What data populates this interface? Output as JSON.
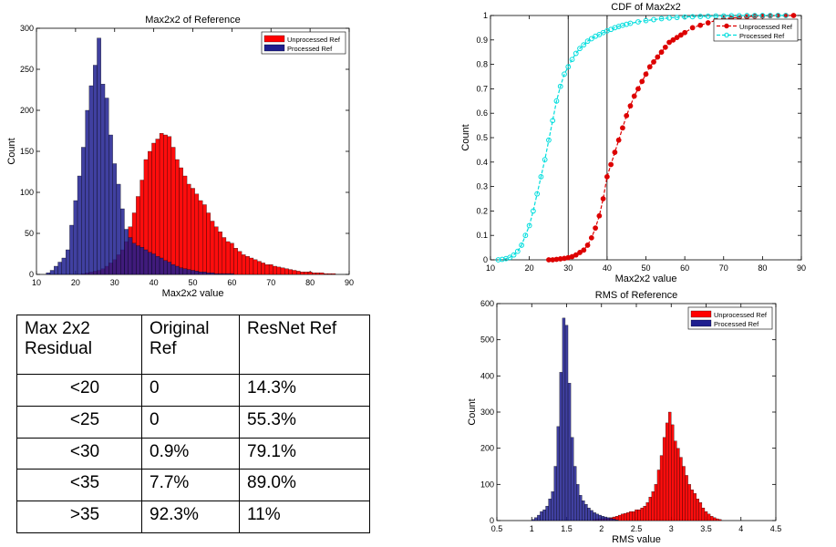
{
  "chart_data": [
    {
      "id": "hist-max",
      "type": "bar",
      "title": "Max2x2 of Reference",
      "xlabel": "Max2x2 value",
      "ylabel": "Count",
      "xlim": [
        10,
        90
      ],
      "ylim": [
        0,
        300
      ],
      "xticks": [
        "10",
        "20",
        "30",
        "40",
        "50",
        "60",
        "70",
        "80",
        "90"
      ],
      "yticks": [
        "0",
        "50",
        "100",
        "150",
        "200",
        "250",
        "300"
      ],
      "bin_width": 1,
      "legend": {
        "placement": "top-right"
      },
      "series": [
        {
          "name": "Unprocessed Ref",
          "color": "#ff0000",
          "x": [
            22,
            23,
            24,
            25,
            26,
            27,
            28,
            29,
            30,
            31,
            32,
            33,
            34,
            35,
            36,
            37,
            38,
            39,
            40,
            41,
            42,
            43,
            44,
            45,
            46,
            47,
            48,
            49,
            50,
            51,
            52,
            53,
            54,
            55,
            56,
            57,
            58,
            59,
            60,
            61,
            62,
            63,
            64,
            65,
            66,
            67,
            68,
            69,
            70,
            71,
            72,
            73,
            74,
            75,
            76,
            77,
            78,
            79,
            80,
            81,
            82,
            83,
            84,
            85,
            86
          ],
          "values": [
            1,
            2,
            3,
            4,
            5,
            7,
            10,
            14,
            18,
            24,
            30,
            40,
            58,
            75,
            95,
            115,
            140,
            150,
            160,
            165,
            172,
            170,
            168,
            155,
            140,
            130,
            120,
            110,
            105,
            98,
            90,
            85,
            75,
            65,
            58,
            52,
            45,
            40,
            38,
            32,
            28,
            24,
            22,
            20,
            18,
            16,
            14,
            12,
            12,
            10,
            9,
            8,
            7,
            6,
            5,
            4,
            3,
            3,
            3,
            2,
            2,
            2,
            1,
            1,
            1
          ]
        },
        {
          "name": "Processed Ref",
          "color": "#1f1f8f",
          "x": [
            13,
            14,
            15,
            16,
            17,
            18,
            19,
            20,
            21,
            22,
            23,
            24,
            25,
            26,
            27,
            28,
            29,
            30,
            31,
            32,
            33,
            34,
            35,
            36,
            37,
            38,
            39,
            40,
            41,
            42,
            43,
            44,
            45,
            46,
            47,
            48,
            49,
            50,
            51,
            52,
            53,
            54,
            55,
            56,
            57,
            58,
            59,
            60
          ],
          "values": [
            2,
            5,
            10,
            15,
            20,
            30,
            60,
            90,
            120,
            155,
            200,
            230,
            255,
            288,
            232,
            215,
            170,
            135,
            110,
            80,
            55,
            45,
            38,
            35,
            33,
            30,
            27,
            25,
            22,
            20,
            17,
            15,
            12,
            10,
            8,
            7,
            6,
            5,
            4,
            3,
            3,
            2,
            2,
            1,
            1,
            1,
            1,
            1
          ]
        }
      ]
    },
    {
      "id": "cdf-max",
      "type": "line",
      "title": "CDF of Max2x2",
      "xlabel": "Max2x2 value",
      "ylabel": "Count",
      "xlim": [
        10,
        90
      ],
      "ylim": [
        0,
        1
      ],
      "xticks": [
        "10",
        "20",
        "30",
        "40",
        "50",
        "60",
        "70",
        "80",
        "90"
      ],
      "yticks": [
        "0",
        "0.1",
        "0.2",
        "0.3",
        "0.4",
        "0.5",
        "0.6",
        "0.7",
        "0.8",
        "0.9",
        "1"
      ],
      "vlines": [
        30,
        40
      ],
      "legend": {
        "placement": "top-right"
      },
      "series": [
        {
          "name": "Unprocessed Ref",
          "color": "#dd0000",
          "marker": "filled-circle",
          "x": [
            25,
            26,
            27,
            28,
            29,
            30,
            31,
            32,
            33,
            34,
            35,
            36,
            37,
            38,
            39,
            40,
            41,
            42,
            43,
            44,
            45,
            46,
            47,
            48,
            49,
            50,
            51,
            52,
            53,
            54,
            55,
            56,
            57,
            58,
            59,
            60,
            62,
            64,
            66,
            68,
            70,
            72,
            74,
            76,
            78,
            80,
            82,
            84,
            86,
            88
          ],
          "values": [
            0,
            0,
            0.002,
            0.004,
            0.006,
            0.009,
            0.013,
            0.02,
            0.03,
            0.04,
            0.06,
            0.09,
            0.13,
            0.18,
            0.25,
            0.34,
            0.39,
            0.44,
            0.49,
            0.54,
            0.59,
            0.63,
            0.67,
            0.7,
            0.73,
            0.76,
            0.79,
            0.81,
            0.83,
            0.85,
            0.87,
            0.89,
            0.9,
            0.91,
            0.92,
            0.93,
            0.95,
            0.96,
            0.97,
            0.98,
            0.985,
            0.99,
            0.992,
            0.995,
            0.997,
            0.998,
            0.999,
            1,
            1,
            1
          ]
        },
        {
          "name": "Processed Ref",
          "color": "#00dddd",
          "marker": "open-circle",
          "x": [
            12,
            13,
            14,
            15,
            16,
            17,
            18,
            19,
            20,
            21,
            22,
            23,
            24,
            25,
            26,
            27,
            28,
            29,
            30,
            31,
            32,
            33,
            34,
            35,
            36,
            37,
            38,
            39,
            40,
            41,
            42,
            43,
            44,
            45,
            46,
            48,
            50,
            52,
            54,
            56,
            58,
            60,
            62,
            64,
            66,
            68,
            70,
            72,
            74,
            76,
            78,
            80,
            82,
            84,
            86
          ],
          "values": [
            0,
            0.002,
            0.005,
            0.01,
            0.02,
            0.035,
            0.06,
            0.1,
            0.14,
            0.2,
            0.27,
            0.34,
            0.41,
            0.49,
            0.57,
            0.65,
            0.71,
            0.76,
            0.79,
            0.82,
            0.845,
            0.865,
            0.88,
            0.895,
            0.905,
            0.915,
            0.922,
            0.93,
            0.937,
            0.943,
            0.95,
            0.955,
            0.96,
            0.964,
            0.968,
            0.974,
            0.979,
            0.983,
            0.987,
            0.99,
            0.992,
            0.994,
            0.995,
            0.996,
            0.997,
            0.998,
            0.998,
            0.999,
            0.999,
            1,
            1,
            1,
            1,
            1,
            1
          ]
        }
      ]
    },
    {
      "id": "hist-rms",
      "type": "bar",
      "title": "RMS of Reference",
      "xlabel": "RMS value",
      "ylabel": "Count",
      "xlim": [
        0.5,
        4.5
      ],
      "ylim": [
        0,
        600
      ],
      "xticks": [
        "0.5",
        "1",
        "1.5",
        "2",
        "2.5",
        "3",
        "3.5",
        "4",
        "4.5"
      ],
      "yticks": [
        "0",
        "100",
        "200",
        "300",
        "400",
        "500",
        "600"
      ],
      "bin_width": 0.04,
      "legend": {
        "placement": "top-right"
      },
      "series": [
        {
          "name": "Unprocessed Ref",
          "color": "#ff0000",
          "x": [
            1.9,
            1.94,
            1.98,
            2.02,
            2.06,
            2.1,
            2.14,
            2.18,
            2.22,
            2.26,
            2.3,
            2.34,
            2.38,
            2.42,
            2.46,
            2.5,
            2.54,
            2.58,
            2.62,
            2.66,
            2.7,
            2.74,
            2.78,
            2.82,
            2.86,
            2.9,
            2.94,
            2.98,
            3.02,
            3.06,
            3.1,
            3.14,
            3.18,
            3.22,
            3.26,
            3.3,
            3.34,
            3.38,
            3.42,
            3.46,
            3.5,
            3.54,
            3.58,
            3.62,
            3.66,
            3.7
          ],
          "values": [
            3,
            4,
            5,
            5,
            6,
            6,
            8,
            10,
            12,
            15,
            18,
            20,
            22,
            25,
            25,
            30,
            30,
            35,
            40,
            50,
            65,
            80,
            100,
            140,
            180,
            230,
            270,
            300,
            265,
            220,
            200,
            175,
            150,
            125,
            100,
            85,
            75,
            60,
            50,
            35,
            25,
            18,
            12,
            8,
            5,
            3
          ]
        },
        {
          "name": "Processed Ref",
          "color": "#1f1f8f",
          "x": [
            1.02,
            1.06,
            1.1,
            1.14,
            1.18,
            1.22,
            1.26,
            1.3,
            1.34,
            1.38,
            1.42,
            1.46,
            1.5,
            1.54,
            1.58,
            1.62,
            1.66,
            1.7,
            1.74,
            1.78,
            1.82,
            1.86,
            1.9,
            1.94,
            1.98,
            2.02,
            2.06,
            2.1,
            2.14,
            2.18,
            2.22
          ],
          "values": [
            3,
            8,
            15,
            25,
            30,
            40,
            60,
            80,
            150,
            260,
            410,
            560,
            540,
            380,
            230,
            150,
            100,
            70,
            55,
            45,
            35,
            28,
            22,
            18,
            15,
            12,
            10,
            8,
            6,
            4,
            2
          ]
        }
      ]
    }
  ],
  "table": {
    "headers": [
      "Max 2x2\nResidual",
      "Original\nRef",
      "ResNet Ref"
    ],
    "rows": [
      [
        "<20",
        "0",
        "14.3%"
      ],
      [
        "<25",
        "0",
        "55.3%"
      ],
      [
        "<30",
        "0.9%",
        "79.1%"
      ],
      [
        "<35",
        "7.7%",
        "89.0%"
      ],
      [
        ">35",
        "92.3%",
        "11%"
      ]
    ]
  }
}
